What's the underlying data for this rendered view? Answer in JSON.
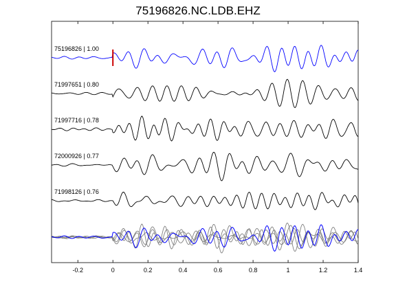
{
  "chart_data": {
    "type": "line",
    "title": "75196826.NC.LDB.EHZ",
    "xlabel": "",
    "ylabel": "",
    "xlim": [
      -0.35,
      1.4
    ],
    "xticks": [
      -0.2,
      0,
      0.2,
      0.4,
      0.6,
      0.8,
      1,
      1.2,
      1.4
    ],
    "xtick_labels": [
      "-0.2",
      "0",
      "0.2",
      "0.4",
      "0.6",
      "0.8",
      "1",
      "1.2",
      "1.4"
    ],
    "grid": false,
    "pick_time": 0.0,
    "colors": {
      "master": "#0000ff",
      "trace": "#000000",
      "overlay": "#808080",
      "pick": "#cc0000"
    },
    "traces": [
      {
        "name": "75196826 | 1.00",
        "id": "75196826",
        "cc": 1.0,
        "color": "#0000ff",
        "seed": 1,
        "amp": 1.0
      },
      {
        "name": "71997651 | 0.80",
        "id": "71997651",
        "cc": 0.8,
        "color": "#000000",
        "seed": 2,
        "amp": 1.0
      },
      {
        "name": "71997716 | 0.78",
        "id": "71997716",
        "cc": 0.78,
        "color": "#000000",
        "seed": 3,
        "amp": 1.0
      },
      {
        "name": "72000926 | 0.77",
        "id": "72000926",
        "cc": 0.77,
        "color": "#000000",
        "seed": 4,
        "amp": 1.0
      },
      {
        "name": "71998126 | 0.76",
        "id": "71998126",
        "cc": 0.76,
        "color": "#000000",
        "seed": 5,
        "amp": 1.0
      }
    ],
    "stack": {
      "show": true,
      "master_color": "#0000ff",
      "others_color": "#808080"
    }
  }
}
